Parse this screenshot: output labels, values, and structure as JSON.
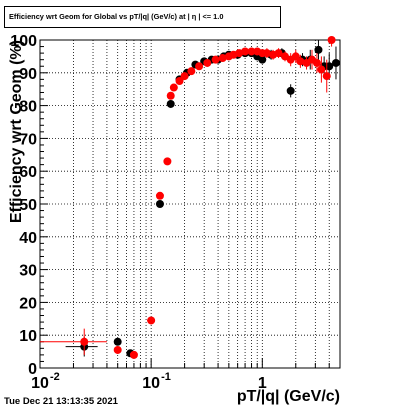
{
  "chart_data": {
    "type": "scatter",
    "title": "Efficiency wrt Geom for Global vs pT/|q| (GeV/c) at | η | <= 1.0",
    "xlabel": "pT/|q| (GeV/c)",
    "ylabel": "Efficiency wrt Geom (%)",
    "xscale": "log",
    "xlim": [
      0.01,
      5
    ],
    "ylim": [
      0,
      100
    ],
    "grid": true,
    "x_ticks": [
      {
        "value": 0.01,
        "label": "10",
        "exp": "-2"
      },
      {
        "value": 0.1,
        "label": "10",
        "exp": "-1"
      },
      {
        "value": 1,
        "label": "1",
        "exp": ""
      }
    ],
    "y_ticks": [
      {
        "value": 0,
        "label": "0"
      },
      {
        "value": 10,
        "label": "10"
      },
      {
        "value": 20,
        "label": "20"
      },
      {
        "value": 30,
        "label": "30"
      },
      {
        "value": 40,
        "label": "40"
      },
      {
        "value": 50,
        "label": "50"
      },
      {
        "value": 60,
        "label": "60"
      },
      {
        "value": 70,
        "label": "70"
      },
      {
        "value": 80,
        "label": "80"
      },
      {
        "value": 90,
        "label": "90"
      },
      {
        "value": 100,
        "label": "100"
      }
    ],
    "series": [
      {
        "color": "#000000",
        "points": [
          {
            "x": 0.025,
            "y": 6.5,
            "xerr": 0.008,
            "yerr": 3
          },
          {
            "x": 0.05,
            "y": 8,
            "xerr": 0.003,
            "yerr": 1
          },
          {
            "x": 0.065,
            "y": 4.5,
            "xerr": 0.003,
            "yerr": 0.8
          },
          {
            "x": 0.12,
            "y": 50,
            "xerr": 0.004,
            "yerr": 0.8
          },
          {
            "x": 0.15,
            "y": 80.5,
            "xerr": 0.004,
            "yerr": 0.8
          },
          {
            "x": 0.18,
            "y": 88,
            "xerr": 0.005,
            "yerr": 1
          },
          {
            "x": 0.21,
            "y": 90,
            "xerr": 0.005,
            "yerr": 1
          },
          {
            "x": 0.25,
            "y": 92.5,
            "xerr": 0.005,
            "yerr": 1
          },
          {
            "x": 0.3,
            "y": 93.5,
            "xerr": 0.005,
            "yerr": 1
          },
          {
            "x": 0.35,
            "y": 94,
            "xerr": 0.005,
            "yerr": 1
          },
          {
            "x": 0.4,
            "y": 94,
            "xerr": 0.005,
            "yerr": 1
          },
          {
            "x": 0.45,
            "y": 95,
            "xerr": 0.005,
            "yerr": 1
          },
          {
            "x": 0.5,
            "y": 95.5,
            "xerr": 0.005,
            "yerr": 1
          },
          {
            "x": 0.6,
            "y": 95.5,
            "xerr": 0.005,
            "yerr": 1
          },
          {
            "x": 0.7,
            "y": 96,
            "xerr": 0.005,
            "yerr": 1
          },
          {
            "x": 0.8,
            "y": 96,
            "xerr": 0.005,
            "yerr": 1
          },
          {
            "x": 0.9,
            "y": 95,
            "xerr": 0.005,
            "yerr": 1
          },
          {
            "x": 1.0,
            "y": 94,
            "xerr": 0.01,
            "yerr": 1
          },
          {
            "x": 1.2,
            "y": 95.5,
            "xerr": 0.01,
            "yerr": 1.5
          },
          {
            "x": 1.5,
            "y": 96,
            "xerr": 0.02,
            "yerr": 1.5
          },
          {
            "x": 1.8,
            "y": 84.5,
            "xerr": 0.02,
            "yerr": 2
          },
          {
            "x": 2.3,
            "y": 94,
            "xerr": 0.03,
            "yerr": 2
          },
          {
            "x": 2.7,
            "y": 94,
            "xerr": 0.05,
            "yerr": 3
          },
          {
            "x": 3.2,
            "y": 97,
            "xerr": 0.1,
            "yerr": 4
          },
          {
            "x": 3.6,
            "y": 92,
            "xerr": 0.1,
            "yerr": 3
          },
          {
            "x": 4.0,
            "y": 92,
            "xerr": 0.1,
            "yerr": 4
          },
          {
            "x": 4.6,
            "y": 93,
            "xerr": 0.2,
            "yerr": 5
          }
        ]
      },
      {
        "color": "#ff0000",
        "points": [
          {
            "x": 0.025,
            "y": 8,
            "xerr": 0.015,
            "yerr": 4
          },
          {
            "x": 0.05,
            "y": 5.5,
            "xerr": 0.003,
            "yerr": 1
          },
          {
            "x": 0.07,
            "y": 4,
            "xerr": 0.005,
            "yerr": 1
          },
          {
            "x": 0.1,
            "y": 14.5,
            "xerr": 0.008,
            "yerr": 0.8
          },
          {
            "x": 0.12,
            "y": 52.5,
            "xerr": 0.004,
            "yerr": 0.8
          },
          {
            "x": 0.14,
            "y": 63,
            "xerr": 0.004,
            "yerr": 0.8
          },
          {
            "x": 0.15,
            "y": 83,
            "xerr": 0.004,
            "yerr": 0.8
          },
          {
            "x": 0.16,
            "y": 85.5,
            "xerr": 0.004,
            "yerr": 0.8
          },
          {
            "x": 0.18,
            "y": 87.5,
            "xerr": 0.005,
            "yerr": 1
          },
          {
            "x": 0.2,
            "y": 89,
            "xerr": 0.005,
            "yerr": 1
          },
          {
            "x": 0.23,
            "y": 90.5,
            "xerr": 0.005,
            "yerr": 1
          },
          {
            "x": 0.27,
            "y": 92,
            "xerr": 0.005,
            "yerr": 1
          },
          {
            "x": 0.32,
            "y": 93,
            "xerr": 0.005,
            "yerr": 1
          },
          {
            "x": 0.38,
            "y": 94,
            "xerr": 0.005,
            "yerr": 1
          },
          {
            "x": 0.44,
            "y": 94.5,
            "xerr": 0.005,
            "yerr": 1
          },
          {
            "x": 0.5,
            "y": 95,
            "xerr": 0.005,
            "yerr": 1
          },
          {
            "x": 0.55,
            "y": 95.5,
            "xerr": 0.005,
            "yerr": 1
          },
          {
            "x": 0.62,
            "y": 96,
            "xerr": 0.005,
            "yerr": 1
          },
          {
            "x": 0.7,
            "y": 96.5,
            "xerr": 0.005,
            "yerr": 1
          },
          {
            "x": 0.8,
            "y": 96.5,
            "xerr": 0.005,
            "yerr": 1
          },
          {
            "x": 0.9,
            "y": 96.5,
            "xerr": 0.005,
            "yerr": 1
          },
          {
            "x": 1.0,
            "y": 96,
            "xerr": 0.01,
            "yerr": 1
          },
          {
            "x": 1.1,
            "y": 96,
            "xerr": 0.01,
            "yerr": 1.5
          },
          {
            "x": 1.25,
            "y": 95.5,
            "xerr": 0.01,
            "yerr": 1.5
          },
          {
            "x": 1.4,
            "y": 96,
            "xerr": 0.02,
            "yerr": 1.5
          },
          {
            "x": 1.6,
            "y": 95,
            "xerr": 0.02,
            "yerr": 1.5
          },
          {
            "x": 1.8,
            "y": 94,
            "xerr": 0.02,
            "yerr": 2
          },
          {
            "x": 2.0,
            "y": 95,
            "xerr": 0.02,
            "yerr": 2
          },
          {
            "x": 2.2,
            "y": 93.5,
            "xerr": 0.03,
            "yerr": 2
          },
          {
            "x": 2.5,
            "y": 93,
            "xerr": 0.03,
            "yerr": 2
          },
          {
            "x": 2.8,
            "y": 94,
            "xerr": 0.05,
            "yerr": 3
          },
          {
            "x": 3.1,
            "y": 93,
            "xerr": 0.1,
            "yerr": 3
          },
          {
            "x": 3.4,
            "y": 91,
            "xerr": 0.1,
            "yerr": 4
          },
          {
            "x": 3.8,
            "y": 89,
            "xerr": 0.1,
            "yerr": 5
          },
          {
            "x": 4.2,
            "y": 100,
            "xerr": 0.15,
            "yerr": 2
          }
        ]
      }
    ]
  },
  "footer": {
    "timestamp": "Tue Dec 21 13:13:35 2021"
  }
}
